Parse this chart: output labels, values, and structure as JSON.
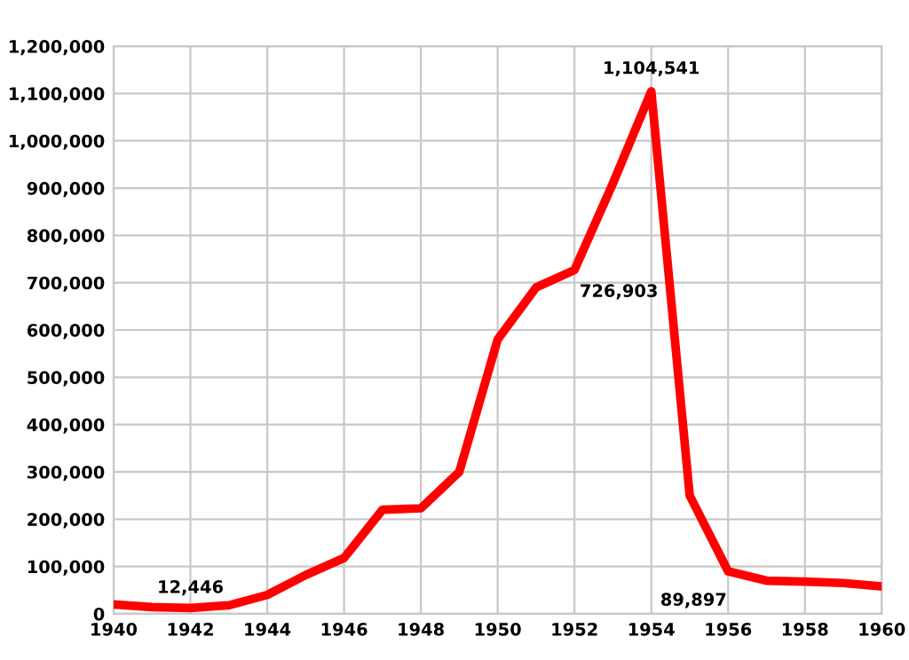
{
  "chart_data": {
    "type": "line",
    "x": [
      1940,
      1941,
      1942,
      1943,
      1944,
      1945,
      1946,
      1947,
      1948,
      1949,
      1950,
      1951,
      1952,
      1953,
      1954,
      1955,
      1956,
      1957,
      1958,
      1959,
      1960
    ],
    "series": [
      {
        "color": "#ff0000",
        "values": [
          20000,
          14000,
          12446,
          18000,
          40000,
          82000,
          118000,
          220000,
          223000,
          300000,
          580000,
          690000,
          726903,
          910000,
          1104541,
          250000,
          89897,
          70000,
          68000,
          65000,
          58000
        ]
      }
    ],
    "xlim": [
      1940,
      1960
    ],
    "xticks": [
      1940,
      1942,
      1944,
      1946,
      1948,
      1950,
      1952,
      1954,
      1956,
      1958,
      1960
    ],
    "ylim": [
      0,
      1200000
    ],
    "yticks": [
      {
        "value": 0,
        "label": "0"
      },
      {
        "value": 100000,
        "label": "100,000"
      },
      {
        "value": 200000,
        "label": "200,000"
      },
      {
        "value": 300000,
        "label": "300,000"
      },
      {
        "value": 400000,
        "label": "400,000"
      },
      {
        "value": 500000,
        "label": "500,000"
      },
      {
        "value": 600000,
        "label": "600,000"
      },
      {
        "value": 700000,
        "label": "700,000"
      },
      {
        "value": 800000,
        "label": "800,000"
      },
      {
        "value": 900000,
        "label": "900,000"
      },
      {
        "value": 1000000,
        "label": "1,000,000"
      },
      {
        "value": 1100000,
        "label": "1,100,000"
      },
      {
        "value": 1200000,
        "label": "1,200,000"
      }
    ],
    "grid": true,
    "line_style": "solid",
    "marker": "none",
    "annotations": [
      {
        "text": "12,446",
        "x": 1942,
        "y": 12446
      },
      {
        "text": "726,903",
        "x": 1952,
        "y": 726903
      },
      {
        "text": "1,104,541",
        "x": 1954,
        "y": 1104541
      },
      {
        "text": "89,897",
        "x": 1956,
        "y": 89897
      }
    ]
  }
}
